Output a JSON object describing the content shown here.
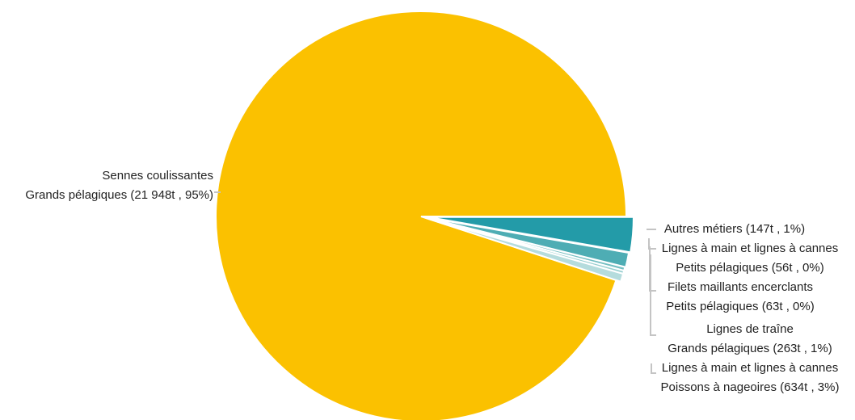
{
  "chart_data": {
    "type": "pie",
    "unit": "t",
    "slices": [
      {
        "name": "Sennes coulissantes Grands pélagiques",
        "value": 21948,
        "percent": 95,
        "color": "#FBC100",
        "label_lines": [
          "Sennes coulissantes",
          "Grands pélagiques (21 948t , 95%)"
        ]
      },
      {
        "name": "Lignes à main et lignes à cannes Poissons à nageoires",
        "value": 634,
        "percent": 3,
        "color": "#239BA8",
        "label_lines": [
          "Lignes à main et lignes à cannes",
          "Poissons à nageoires (634t , 3%)"
        ]
      },
      {
        "name": "Lignes de traîne Grands pélagiques",
        "value": 263,
        "percent": 1,
        "color": "#4EADB4",
        "label_lines": [
          "Lignes de traîne",
          "Grands pélagiques (263t , 1%)"
        ]
      },
      {
        "name": "Filets maillants encerclants Petits pélagiques",
        "value": 63,
        "percent": 0,
        "color": "#75BFC2",
        "label_lines": [
          "Filets maillants encerclants",
          "Petits pélagiques (63t , 0%)"
        ]
      },
      {
        "name": "Lignes à main et lignes à cannes Petits pélagiques",
        "value": 56,
        "percent": 0,
        "color": "#98CFD0",
        "label_lines": [
          "Lignes à main et lignes à cannes",
          "Petits pélagiques (56t , 0%)"
        ]
      },
      {
        "name": "Autres métiers",
        "value": 147,
        "percent": 1,
        "color": "#B5DCDD",
        "label_lines": [
          "Autres métiers (147t , 1%)"
        ]
      }
    ]
  }
}
